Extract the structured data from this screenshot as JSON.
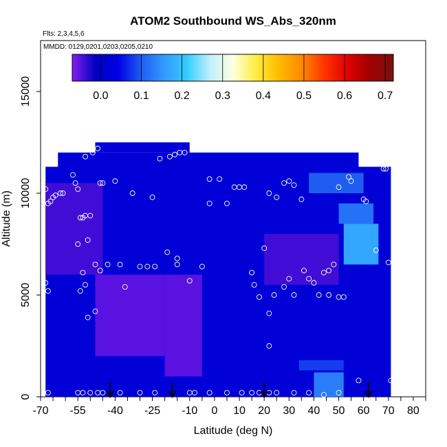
{
  "chart_data": {
    "type": "heatmap",
    "title": "ATOM2 Southbound WS_Abs_320nm",
    "subtitle_flights": "Flts: 2,3,4,5,6",
    "subtitle_dates": "MMDD: 0129,0201,0203,0205,0210",
    "xlabel": "Latitude (deg N)",
    "ylabel": "Altitude (m)",
    "xlim": [
      -70,
      85
    ],
    "ylim": [
      0,
      17500
    ],
    "x_ticks_labeled": [
      -70,
      -55,
      -40,
      -25,
      -10,
      0,
      10,
      20,
      30,
      40,
      50,
      60,
      70,
      80
    ],
    "x_ticks_minor": [
      -65,
      -60,
      -50,
      -45,
      -35,
      -30,
      -20,
      -15,
      -5,
      5,
      15,
      25,
      35,
      45,
      55,
      65,
      75,
      85
    ],
    "y_ticks": [
      0,
      5000,
      10000,
      15000
    ],
    "colorbar": {
      "min": -0.07,
      "max": 0.72,
      "ticks": [
        0.0,
        0.1,
        0.2,
        0.3,
        0.4,
        0.5,
        0.6,
        0.7
      ],
      "tick_labels": [
        "0.0",
        "0.1",
        "0.2",
        "0.3",
        "0.4",
        "0.5",
        "0.6",
        "0.7"
      ],
      "colors": [
        "#8a1cf0",
        "#0000c0",
        "#0000e6",
        "#1e5cf0",
        "#3399ff",
        "#33ccff",
        "#bfefff",
        "#ffffe0",
        "#ffee44",
        "#ffbb00",
        "#ff8800",
        "#ff3300",
        "#e00000",
        "#a00000",
        "#7a1010"
      ]
    },
    "regions": [
      {
        "lat": [
          -68,
          71
        ],
        "alt": [
          0,
          11300
        ],
        "value": 0.02
      },
      {
        "lat": [
          -63,
          58
        ],
        "alt": [
          11300,
          12000
        ],
        "value": 0.02
      },
      {
        "lat": [
          -48,
          -10
        ],
        "alt": [
          12000,
          12500
        ],
        "value": 0.02
      },
      {
        "lat": [
          -20,
          -5
        ],
        "alt": [
          1000,
          6000
        ],
        "value": -0.05
      },
      {
        "lat": [
          -48,
          -20
        ],
        "alt": [
          2000,
          6000
        ],
        "value": -0.05
      },
      {
        "lat": [
          -68,
          -45
        ],
        "alt": [
          6000,
          10500
        ],
        "value": -0.04
      },
      {
        "lat": [
          20,
          50
        ],
        "alt": [
          5500,
          8000
        ],
        "value": -0.04
      },
      {
        "lat": [
          52,
          66
        ],
        "alt": [
          6500,
          8500
        ],
        "value": 0.17
      },
      {
        "lat": [
          50,
          64
        ],
        "alt": [
          8500,
          9500
        ],
        "value": 0.12
      },
      {
        "lat": [
          38,
          60
        ],
        "alt": [
          10000,
          11000
        ],
        "value": 0.1
      },
      {
        "lat": [
          40,
          52
        ],
        "alt": [
          0,
          1200
        ],
        "value": 0.13
      },
      {
        "lat": [
          34,
          52
        ],
        "alt": [
          1300,
          1800
        ],
        "value": 0.08
      }
    ],
    "points": [
      [
        -68,
        10200
      ],
      [
        -67,
        9500
      ],
      [
        -66,
        9600
      ],
      [
        -65,
        9800
      ],
      [
        -64,
        9900
      ],
      [
        -62,
        10000
      ],
      [
        -61,
        10000
      ],
      [
        -56,
        10500
      ],
      [
        -55,
        10200
      ],
      [
        -54,
        8800
      ],
      [
        -53,
        8800
      ],
      [
        -52,
        8900
      ],
      [
        -50,
        8900
      ],
      [
        -46,
        10500
      ],
      [
        -45,
        10500
      ],
      [
        -40,
        10600
      ],
      [
        -33,
        10000
      ],
      [
        -25,
        9800
      ],
      [
        -52,
        11800
      ],
      [
        -49,
        12000
      ],
      [
        -47,
        12200
      ],
      [
        -22,
        11700
      ],
      [
        -18,
        11800
      ],
      [
        -16,
        11900
      ],
      [
        -14,
        12000
      ],
      [
        -12,
        12000
      ],
      [
        -57,
        10900
      ],
      [
        -51,
        7700
      ],
      [
        -46,
        6200
      ],
      [
        -48,
        6500
      ],
      [
        -54,
        5200
      ],
      [
        -52,
        5500
      ],
      [
        -43,
        6500
      ],
      [
        -38,
        6500
      ],
      [
        -36,
        5400
      ],
      [
        -30,
        6400
      ],
      [
        -27,
        6400
      ],
      [
        -24,
        6400
      ],
      [
        -19,
        7100
      ],
      [
        -15,
        6800
      ],
      [
        -15,
        6500
      ],
      [
        -10,
        5700
      ],
      [
        -5,
        6400
      ],
      [
        -2,
        10700
      ],
      [
        2,
        10700
      ],
      [
        8,
        10300
      ],
      [
        10,
        10300
      ],
      [
        12,
        10300
      ],
      [
        15,
        6100
      ],
      [
        16,
        5500
      ],
      [
        18,
        4900
      ],
      [
        20,
        7300
      ],
      [
        22,
        10000
      ],
      [
        25,
        9800
      ],
      [
        28,
        10500
      ],
      [
        30,
        10600
      ],
      [
        32,
        10400
      ],
      [
        35,
        9700
      ],
      [
        36,
        6200
      ],
      [
        38,
        5800
      ],
      [
        40,
        5600
      ],
      [
        42,
        5000
      ],
      [
        44,
        6100
      ],
      [
        46,
        6200
      ],
      [
        48,
        6500
      ],
      [
        50,
        10300
      ],
      [
        55,
        10600
      ],
      [
        60,
        9700
      ],
      [
        61,
        9600
      ],
      [
        65,
        7200
      ],
      [
        68,
        11200
      ],
      [
        69,
        11200
      ],
      [
        70,
        6600
      ],
      [
        71,
        800
      ],
      [
        -68,
        5600
      ],
      [
        -67,
        5200
      ],
      [
        -55,
        7500
      ],
      [
        -53,
        6100
      ],
      [
        -51,
        3900
      ],
      [
        -48,
        4200
      ],
      [
        -2,
        9500
      ],
      [
        5,
        9500
      ],
      [
        22,
        4100
      ],
      [
        22,
        2500
      ],
      [
        24,
        5000
      ],
      [
        28,
        5400
      ],
      [
        30,
        5800
      ],
      [
        32,
        5000
      ],
      [
        46,
        5000
      ],
      [
        50,
        4900
      ],
      [
        52,
        4900
      ],
      [
        54,
        10800
      ],
      [
        -67,
        200
      ],
      [
        -55,
        200
      ],
      [
        -53,
        200
      ],
      [
        -50,
        200
      ],
      [
        -47,
        200
      ],
      [
        -45,
        200
      ],
      [
        -38,
        200
      ],
      [
        -30,
        200
      ],
      [
        -24,
        200
      ],
      [
        -10,
        200
      ],
      [
        -8,
        200
      ],
      [
        -2,
        200
      ],
      [
        5,
        200
      ],
      [
        11,
        200
      ],
      [
        15,
        200
      ],
      [
        18,
        200
      ],
      [
        22,
        200
      ],
      [
        25,
        200
      ],
      [
        32,
        200
      ],
      [
        38,
        200
      ],
      [
        44,
        100
      ],
      [
        50,
        200
      ],
      [
        58,
        800
      ]
    ],
    "arrows_lat": [
      -42,
      -17,
      20,
      62
    ]
  }
}
